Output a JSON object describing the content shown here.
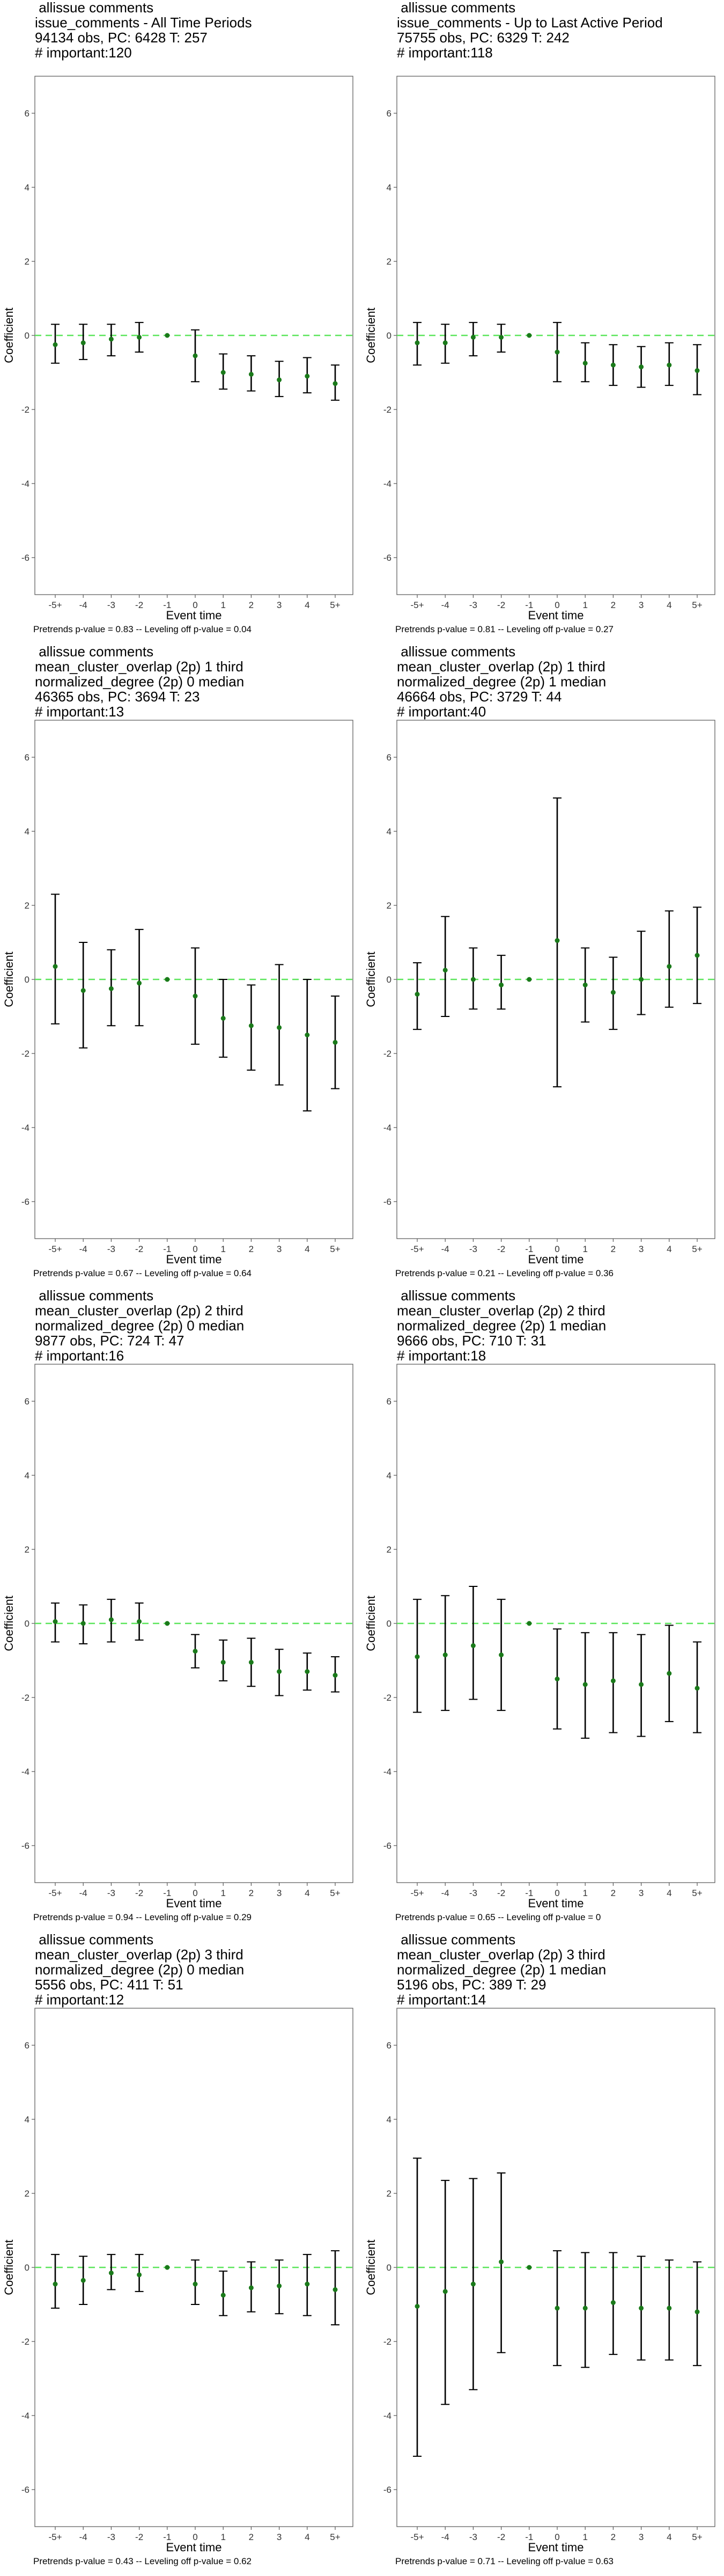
{
  "chart_data": [
    {
      "type": "scatter",
      "title": [
        "allissue comments",
        "issue_comments - All Time Periods",
        "94134 obs, PC: 6428 T: 257",
        "# important:120"
      ],
      "xlabel": "Event time",
      "ylabel": "Coefficient",
      "ylim": [
        -7,
        7
      ],
      "yticks": [
        -6,
        -4,
        -2,
        0,
        2,
        4,
        6
      ],
      "categories": [
        "-5+",
        "-4",
        "-3",
        "-2",
        "-1",
        "0",
        "1",
        "2",
        "3",
        "4",
        "5+"
      ],
      "coef": [
        -0.25,
        -0.2,
        -0.1,
        -0.05,
        0,
        -0.55,
        -1.0,
        -1.05,
        -1.2,
        -1.1,
        -1.3
      ],
      "ci_lo": [
        -0.75,
        -0.65,
        -0.55,
        -0.45,
        0,
        -1.25,
        -1.45,
        -1.5,
        -1.65,
        -1.55,
        -1.75
      ],
      "ci_hi": [
        0.3,
        0.3,
        0.3,
        0.35,
        0,
        0.15,
        -0.5,
        -0.55,
        -0.7,
        -0.6,
        -0.8
      ],
      "reference_line": 0,
      "footer": "Pretrends p-value = 0.83 -- Leveling off p-value = 0.04"
    },
    {
      "type": "scatter",
      "title": [
        "allissue comments",
        "issue_comments - Up to Last Active Period",
        "75755 obs, PC: 6329 T: 242",
        "# important:118"
      ],
      "xlabel": "Event time",
      "ylabel": "Coefficient",
      "ylim": [
        -7,
        7
      ],
      "yticks": [
        -6,
        -4,
        -2,
        0,
        2,
        4,
        6
      ],
      "categories": [
        "-5+",
        "-4",
        "-3",
        "-2",
        "-1",
        "0",
        "1",
        "2",
        "3",
        "4",
        "5+"
      ],
      "coef": [
        -0.2,
        -0.2,
        -0.05,
        -0.05,
        0,
        -0.45,
        -0.75,
        -0.8,
        -0.85,
        -0.8,
        -0.95
      ],
      "ci_lo": [
        -0.8,
        -0.75,
        -0.55,
        -0.45,
        0,
        -1.25,
        -1.25,
        -1.35,
        -1.4,
        -1.35,
        -1.6
      ],
      "ci_hi": [
        0.35,
        0.3,
        0.35,
        0.3,
        0,
        0.35,
        -0.2,
        -0.25,
        -0.3,
        -0.2,
        -0.25
      ],
      "reference_line": 0,
      "footer": "Pretrends p-value = 0.81 -- Leveling off p-value = 0.27"
    },
    {
      "type": "scatter",
      "title": [
        "allissue comments",
        "mean_cluster_overlap (2p) 1 third",
        "normalized_degree (2p) 0 median",
        "46365 obs, PC: 3694 T: 23",
        "# important:13"
      ],
      "xlabel": "Event time",
      "ylabel": "Coefficient",
      "ylim": [
        -7,
        7
      ],
      "yticks": [
        -6,
        -4,
        -2,
        0,
        2,
        4,
        6
      ],
      "categories": [
        "-5+",
        "-4",
        "-3",
        "-2",
        "-1",
        "0",
        "1",
        "2",
        "3",
        "4",
        "5+"
      ],
      "coef": [
        0.35,
        -0.3,
        -0.25,
        -0.1,
        0,
        -0.45,
        -1.05,
        -1.25,
        -1.3,
        -1.5,
        -1.7
      ],
      "ci_lo": [
        -1.2,
        -1.85,
        -1.25,
        -1.25,
        0,
        -1.75,
        -2.1,
        -2.45,
        -2.85,
        -3.55,
        -2.95
      ],
      "ci_hi": [
        2.3,
        1.0,
        0.8,
        1.35,
        0,
        0.85,
        0.0,
        -0.15,
        0.4,
        0.0,
        -0.45
      ],
      "reference_line": 0,
      "footer": "Pretrends p-value = 0.67 -- Leveling off p-value = 0.64"
    },
    {
      "type": "scatter",
      "title": [
        "allissue comments",
        "mean_cluster_overlap (2p) 1 third",
        "normalized_degree (2p) 1 median",
        "46664 obs, PC: 3729 T: 44",
        "# important:40"
      ],
      "xlabel": "Event time",
      "ylabel": "Coefficient",
      "ylim": [
        -7,
        7
      ],
      "yticks": [
        -6,
        -4,
        -2,
        0,
        2,
        4,
        6
      ],
      "categories": [
        "-5+",
        "-4",
        "-3",
        "-2",
        "-1",
        "0",
        "1",
        "2",
        "3",
        "4",
        "5+"
      ],
      "coef": [
        -0.4,
        0.25,
        0.0,
        -0.15,
        0,
        1.05,
        -0.15,
        -0.35,
        0.0,
        0.35,
        0.65
      ],
      "ci_lo": [
        -1.35,
        -1.0,
        -0.8,
        -0.8,
        0,
        -2.9,
        -1.15,
        -1.35,
        -0.95,
        -0.75,
        -0.65
      ],
      "ci_hi": [
        0.45,
        1.7,
        0.85,
        0.65,
        0,
        4.9,
        0.85,
        0.6,
        1.3,
        1.85,
        1.95
      ],
      "reference_line": 0,
      "footer": "Pretrends p-value = 0.21 -- Leveling off p-value = 0.36"
    },
    {
      "type": "scatter",
      "title": [
        "allissue comments",
        "mean_cluster_overlap (2p) 2 third",
        "normalized_degree (2p) 0 median",
        "9877 obs, PC: 724 T: 47",
        "# important:16"
      ],
      "xlabel": "Event time",
      "ylabel": "Coefficient",
      "ylim": [
        -7,
        7
      ],
      "yticks": [
        -6,
        -4,
        -2,
        0,
        2,
        4,
        6
      ],
      "categories": [
        "-5+",
        "-4",
        "-3",
        "-2",
        "-1",
        "0",
        "1",
        "2",
        "3",
        "4",
        "5+"
      ],
      "coef": [
        0.05,
        0.0,
        0.1,
        0.05,
        0,
        -0.75,
        -1.05,
        -1.05,
        -1.3,
        -1.3,
        -1.4
      ],
      "ci_lo": [
        -0.5,
        -0.55,
        -0.5,
        -0.45,
        0,
        -1.2,
        -1.55,
        -1.7,
        -1.95,
        -1.8,
        -1.85
      ],
      "ci_hi": [
        0.55,
        0.5,
        0.65,
        0.55,
        0,
        -0.3,
        -0.45,
        -0.4,
        -0.7,
        -0.8,
        -0.9
      ],
      "reference_line": 0,
      "footer": "Pretrends p-value = 0.94 -- Leveling off p-value = 0.29"
    },
    {
      "type": "scatter",
      "title": [
        "allissue comments",
        "mean_cluster_overlap (2p) 2 third",
        "normalized_degree (2p) 1 median",
        "9666 obs, PC: 710 T: 31",
        "# important:18"
      ],
      "xlabel": "Event time",
      "ylabel": "Coefficient",
      "ylim": [
        -7,
        7
      ],
      "yticks": [
        -6,
        -4,
        -2,
        0,
        2,
        4,
        6
      ],
      "categories": [
        "-5+",
        "-4",
        "-3",
        "-2",
        "-1",
        "0",
        "1",
        "2",
        "3",
        "4",
        "5+"
      ],
      "coef": [
        -0.9,
        -0.85,
        -0.6,
        -0.85,
        0,
        -1.5,
        -1.65,
        -1.55,
        -1.65,
        -1.35,
        -1.75
      ],
      "ci_lo": [
        -2.4,
        -2.35,
        -2.05,
        -2.35,
        0,
        -2.85,
        -3.1,
        -2.95,
        -3.05,
        -2.65,
        -2.95
      ],
      "ci_hi": [
        0.65,
        0.75,
        1.0,
        0.65,
        0,
        -0.15,
        -0.25,
        -0.25,
        -0.3,
        -0.05,
        -0.5
      ],
      "reference_line": 0,
      "footer": "Pretrends p-value = 0.65 -- Leveling off p-value = 0"
    },
    {
      "type": "scatter",
      "title": [
        "allissue comments",
        "mean_cluster_overlap (2p) 3 third",
        "normalized_degree (2p) 0 median",
        "5556 obs, PC: 411 T: 51",
        "# important:12"
      ],
      "xlabel": "Event time",
      "ylabel": "Coefficient",
      "ylim": [
        -7,
        7
      ],
      "yticks": [
        -6,
        -4,
        -2,
        0,
        2,
        4,
        6
      ],
      "categories": [
        "-5+",
        "-4",
        "-3",
        "-2",
        "-1",
        "0",
        "1",
        "2",
        "3",
        "4",
        "5+"
      ],
      "coef": [
        -0.45,
        -0.35,
        -0.15,
        -0.2,
        0,
        -0.45,
        -0.75,
        -0.55,
        -0.5,
        -0.45,
        -0.6
      ],
      "ci_lo": [
        -1.1,
        -1.0,
        -0.6,
        -0.65,
        0,
        -1.0,
        -1.3,
        -1.2,
        -1.25,
        -1.3,
        -1.55
      ],
      "ci_hi": [
        0.35,
        0.3,
        0.35,
        0.35,
        0,
        0.2,
        -0.1,
        0.15,
        0.2,
        0.35,
        0.45
      ],
      "reference_line": 0,
      "footer": "Pretrends p-value = 0.43 -- Leveling off p-value = 0.62"
    },
    {
      "type": "scatter",
      "title": [
        "allissue comments",
        "mean_cluster_overlap (2p) 3 third",
        "normalized_degree (2p) 1 median",
        "5196 obs, PC: 389 T: 29",
        "# important:14"
      ],
      "xlabel": "Event time",
      "ylabel": "Coefficient",
      "ylim": [
        -7,
        7
      ],
      "yticks": [
        -6,
        -4,
        -2,
        0,
        2,
        4,
        6
      ],
      "categories": [
        "-5+",
        "-4",
        "-3",
        "-2",
        "-1",
        "0",
        "1",
        "2",
        "3",
        "4",
        "5+"
      ],
      "coef": [
        -1.05,
        -0.65,
        -0.45,
        0.15,
        0,
        -1.1,
        -1.1,
        -0.95,
        -1.1,
        -1.1,
        -1.2
      ],
      "ci_lo": [
        -5.1,
        -3.7,
        -3.3,
        -2.3,
        0,
        -2.65,
        -2.7,
        -2.35,
        -2.5,
        -2.5,
        -2.65
      ],
      "ci_hi": [
        2.95,
        2.35,
        2.4,
        2.55,
        0,
        0.45,
        0.4,
        0.4,
        0.3,
        0.2,
        0.15
      ],
      "reference_line": 0,
      "footer": "Pretrends p-value = 0.71 -- Leveling off p-value = 0.63"
    }
  ],
  "colors": {
    "point": "#1a7a1a",
    "reference_line": "#5ce65c",
    "errorbar": "#000000",
    "frame": "#555555",
    "axis_text": "#333333"
  }
}
